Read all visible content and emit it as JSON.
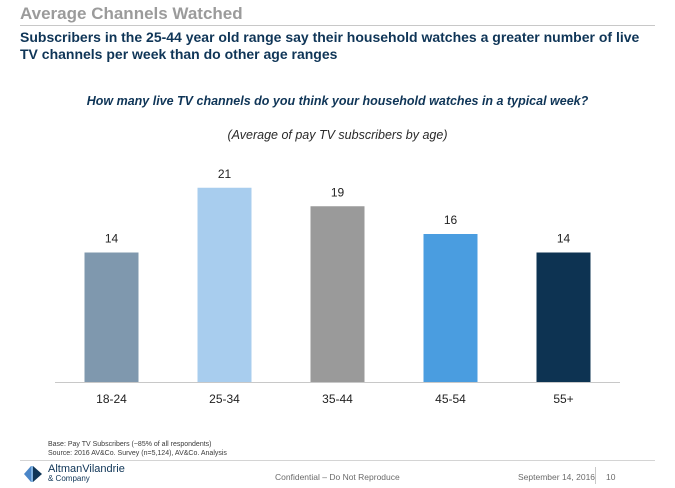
{
  "header": {
    "title": "Average Channels Watched",
    "headline": "Subscribers in the 25-44 year old range say their household watches a greater number of live TV channels per week than do other age ranges"
  },
  "chart_data": {
    "type": "bar",
    "title": "How many live TV channels do you think your household watches in a typical week?",
    "subtitle": "(Average of pay TV subscribers by age)",
    "categories": [
      "18-24",
      "25-34",
      "35-44",
      "45-54",
      "55+"
    ],
    "values": [
      14,
      21,
      19,
      16,
      14
    ],
    "colors": [
      "#7f98ae",
      "#a8cdee",
      "#9a9a9a",
      "#4a9de0",
      "#0d3352"
    ],
    "ylim": [
      0,
      24
    ],
    "grid": false,
    "show_value_labels": true
  },
  "footnotes": {
    "base": "Base: Pay TV Subscribers (~85% of all respondents)",
    "source": "Source: 2016 AV&Co. Survey (n=5,124), AV&Co. Analysis"
  },
  "footer": {
    "logo_main": "AltmanVilandrie",
    "logo_sub": "& Company",
    "confidential": "Confidential – Do Not Reproduce",
    "date": "September 14, 2016",
    "page_number": "10"
  }
}
